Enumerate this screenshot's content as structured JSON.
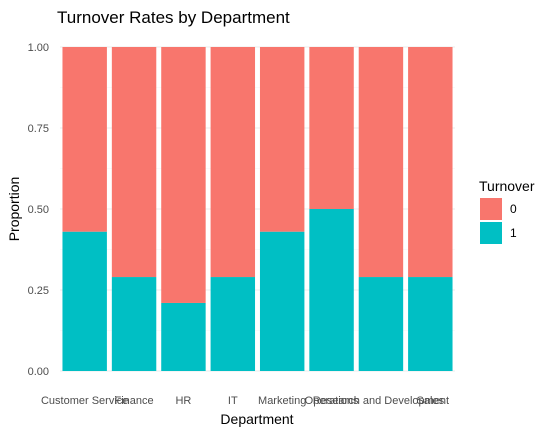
{
  "chart_data": {
    "type": "bar",
    "stacked": true,
    "title": "Turnover Rates by Department",
    "xlabel": "Department",
    "ylabel": "Proportion",
    "ylim": [
      0,
      1
    ],
    "yticks": [
      "0.00",
      "0.25",
      "0.50",
      "0.75",
      "1.00"
    ],
    "categories": [
      "Customer Service",
      "Finance",
      "HR",
      "IT",
      "Marketing",
      "Operations",
      "Research and Development",
      "Sales"
    ],
    "legend": {
      "title": "Turnover",
      "position": "right"
    },
    "grid": true,
    "series": [
      {
        "name": "1",
        "color": "#00BFC4",
        "values": [
          0.43,
          0.29,
          0.21,
          0.29,
          0.43,
          0.5,
          0.29,
          0.29
        ]
      },
      {
        "name": "0",
        "color": "#F8766D",
        "values": [
          0.57,
          0.71,
          0.79,
          0.71,
          0.57,
          0.5,
          0.71,
          0.71
        ]
      }
    ],
    "legend_order": [
      "0",
      "1"
    ]
  }
}
